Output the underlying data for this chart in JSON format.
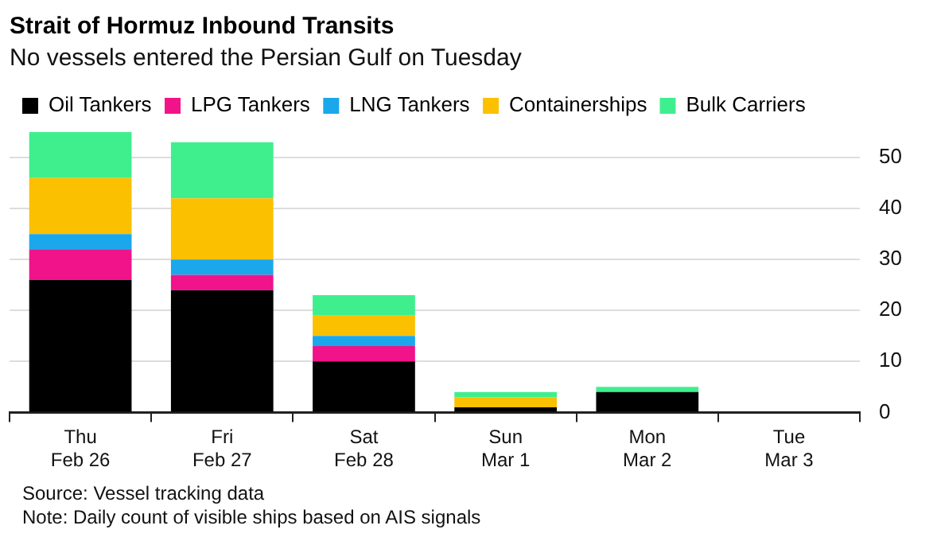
{
  "chart_data": {
    "type": "bar",
    "title": "Strait of Hormuz Inbound Transits",
    "subtitle": "No vessels entered the Persian Gulf on Tuesday",
    "categories": [
      "Thu\nFeb 26",
      "Fri\nFeb 27",
      "Sat\nFeb 28",
      "Sun\nMar 1",
      "Mon\nMar 2",
      "Tue\nMar 3"
    ],
    "series": [
      {
        "name": "Oil Tankers",
        "color": "#000000",
        "values": [
          26,
          24,
          10,
          1,
          4,
          0
        ]
      },
      {
        "name": "LPG Tankers",
        "color": "#f0138a",
        "values": [
          6,
          3,
          3,
          0,
          0,
          0
        ]
      },
      {
        "name": "LNG Tankers",
        "color": "#1aa7ec",
        "values": [
          3,
          3,
          2,
          0,
          0,
          0
        ]
      },
      {
        "name": "Containerships",
        "color": "#fbc000",
        "values": [
          11,
          12,
          4,
          2,
          0,
          0
        ]
      },
      {
        "name": "Bulk Carriers",
        "color": "#3fef8e",
        "values": [
          9,
          11,
          4,
          1,
          1,
          0
        ]
      }
    ],
    "stacked": true,
    "ylim": [
      0,
      55
    ],
    "yticks": [
      0,
      10,
      20,
      30,
      40,
      50
    ],
    "grid": "y",
    "legend": "top left",
    "annotations": [
      "Source: Vessel tracking data",
      "Note: Daily count of visible ships based on AIS signals"
    ]
  }
}
